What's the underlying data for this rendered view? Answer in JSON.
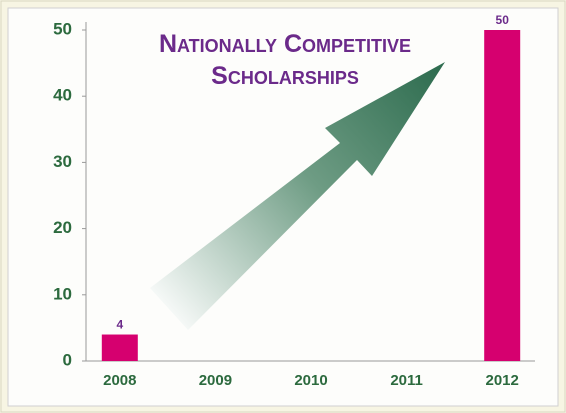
{
  "chart_data": {
    "type": "bar",
    "title": "Nationally Competitive Scholarships",
    "categories": [
      "2008",
      "2009",
      "2010",
      "2011",
      "2012"
    ],
    "values": [
      4,
      null,
      null,
      null,
      50
    ],
    "color": "#d6006f",
    "ylim": [
      0,
      50
    ],
    "yticks": [
      0,
      10,
      20,
      30,
      40,
      50
    ],
    "grid": false
  }
}
